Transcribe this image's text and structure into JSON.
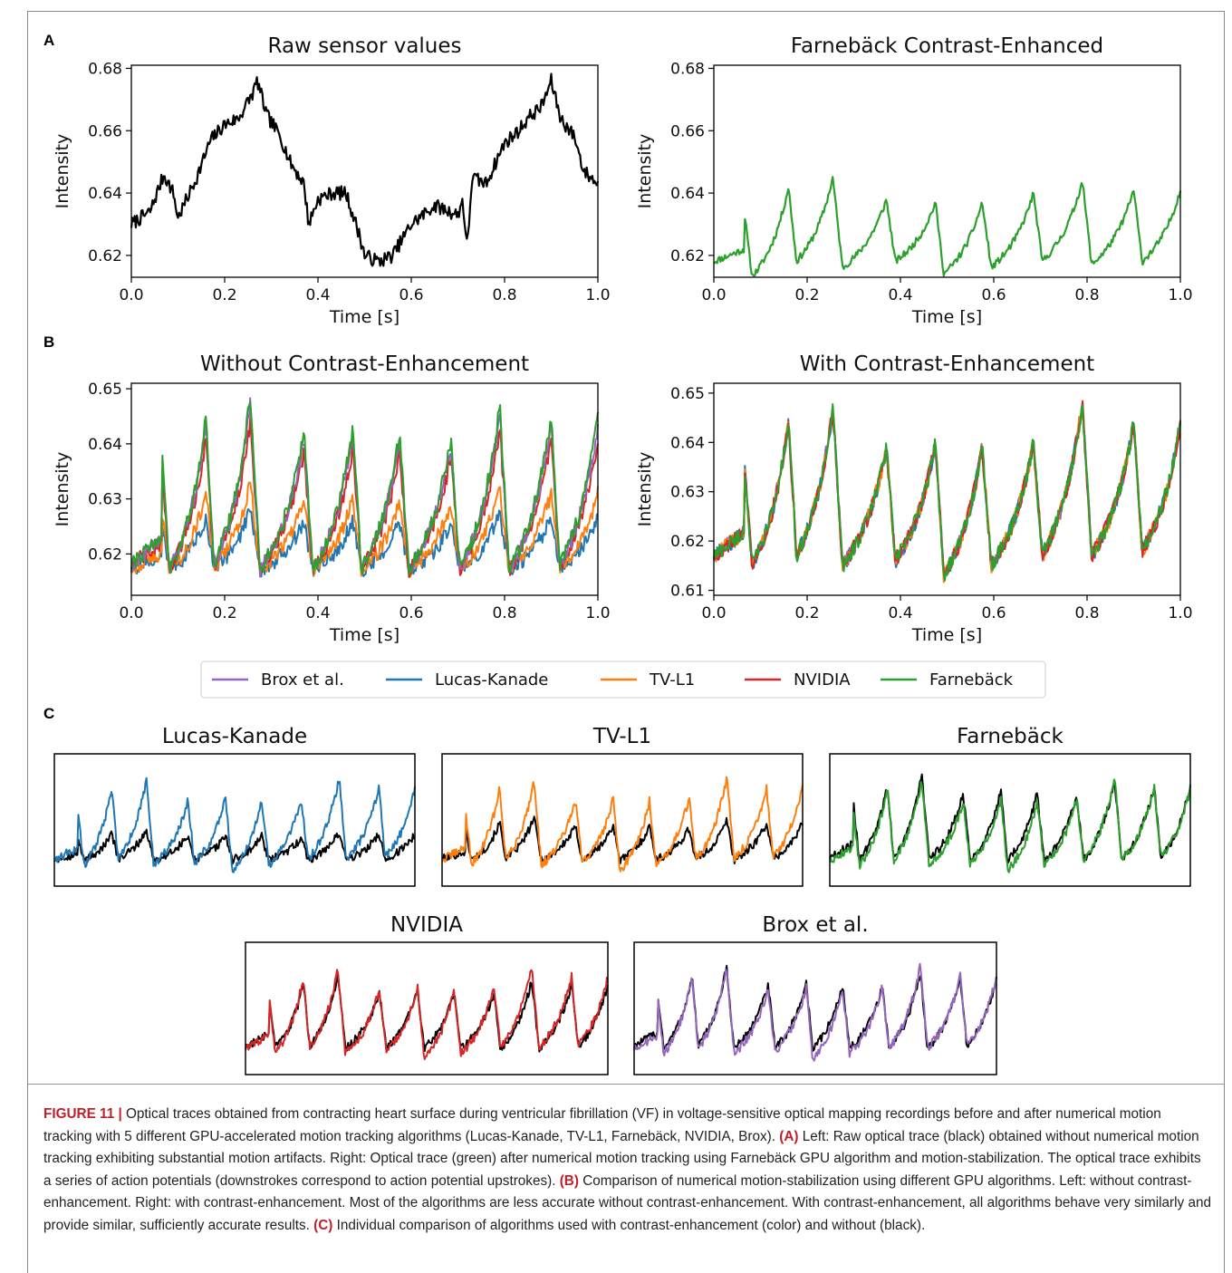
{
  "panel_letters": {
    "a": "A",
    "b": "B",
    "c": "C"
  },
  "colors": {
    "brox": "#9467bd",
    "lucas": "#1f77b4",
    "tvl1": "#ff7f0e",
    "nvidia": "#d62728",
    "farneback": "#2ca02c",
    "raw": "#000000"
  },
  "legend": [
    {
      "key": "brox",
      "label": "Brox et al."
    },
    {
      "key": "lucas",
      "label": "Lucas-Kanade"
    },
    {
      "key": "tvl1",
      "label": "TV-L1"
    },
    {
      "key": "nvidia",
      "label": "NVIDIA"
    },
    {
      "key": "farneback",
      "label": "Farnebäck"
    }
  ],
  "chart_data": [
    {
      "id": "a-left",
      "type": "line",
      "title": "Raw sensor values",
      "xlabel": "Time [s]",
      "ylabel": "Intensity",
      "xlim": [
        0,
        1
      ],
      "ylim": [
        0.613,
        0.681
      ],
      "xticks": [
        "0.0",
        "0.2",
        "0.4",
        "0.6",
        "0.8",
        "1.0"
      ],
      "yticks": [
        "0.62",
        "0.64",
        "0.66",
        "0.68"
      ],
      "series": [
        {
          "color": "raw",
          "x": [
            0.0,
            0.04,
            0.07,
            0.09,
            0.1,
            0.14,
            0.17,
            0.2,
            0.23,
            0.26,
            0.27,
            0.29,
            0.32,
            0.34,
            0.37,
            0.38,
            0.4,
            0.43,
            0.46,
            0.49,
            0.5,
            0.53,
            0.56,
            0.6,
            0.65,
            0.7,
            0.71,
            0.72,
            0.73,
            0.76,
            0.8,
            0.83,
            0.85,
            0.88,
            0.9,
            0.92,
            0.95,
            0.97,
            1.0
          ],
          "values": [
            0.63,
            0.634,
            0.646,
            0.64,
            0.632,
            0.645,
            0.657,
            0.662,
            0.664,
            0.672,
            0.676,
            0.665,
            0.658,
            0.65,
            0.643,
            0.63,
            0.638,
            0.64,
            0.64,
            0.626,
            0.62,
            0.618,
            0.62,
            0.63,
            0.636,
            0.633,
            0.638,
            0.622,
            0.645,
            0.643,
            0.656,
            0.66,
            0.664,
            0.668,
            0.676,
            0.664,
            0.658,
            0.647,
            0.643
          ]
        }
      ]
    },
    {
      "id": "a-right",
      "type": "line",
      "title": "Farnebäck Contrast-Enhanced",
      "xlabel": "Time [s]",
      "ylabel": "Intensity",
      "xlim": [
        0,
        1
      ],
      "ylim": [
        0.613,
        0.681
      ],
      "xticks": [
        "0.0",
        "0.2",
        "0.4",
        "0.6",
        "0.8",
        "1.0"
      ],
      "yticks": [
        "0.62",
        "0.64",
        "0.66",
        "0.68"
      ],
      "beats": [
        0.065,
        0.16,
        0.255,
        0.37,
        0.475,
        0.575,
        0.685,
        0.79,
        0.9
      ],
      "peaks": [
        0.634,
        0.642,
        0.645,
        0.638,
        0.637,
        0.637,
        0.64,
        0.644,
        0.641
      ],
      "troughs": [
        0.618,
        0.613,
        0.618,
        0.616,
        0.618,
        0.614,
        0.616,
        0.618,
        0.617,
        0.618
      ],
      "series": [
        {
          "color": "farneback"
        }
      ]
    },
    {
      "id": "b-left",
      "type": "line",
      "title": "Without Contrast-Enhancement",
      "xlabel": "Time [s]",
      "ylabel": "Intensity",
      "xlim": [
        0,
        1
      ],
      "ylim": [
        0.6125,
        0.651
      ],
      "xticks": [
        "0.0",
        "0.2",
        "0.4",
        "0.6",
        "0.8",
        "1.0"
      ],
      "yticks": [
        "0.62",
        "0.63",
        "0.64",
        "0.65"
      ],
      "beats": [
        0.065,
        0.16,
        0.255,
        0.37,
        0.475,
        0.575,
        0.685,
        0.79,
        0.9
      ],
      "series": [
        {
          "color": "lucas",
          "amp": 0.35,
          "base": 0.619
        },
        {
          "color": "tvl1",
          "amp": 0.5,
          "base": 0.619
        },
        {
          "color": "nvidia",
          "amp": 0.85,
          "base": 0.618
        },
        {
          "color": "brox",
          "amp": 0.95,
          "base": 0.619
        },
        {
          "color": "farneback",
          "amp": 1.0,
          "base": 0.619
        }
      ],
      "peaks": [
        0.639,
        0.645,
        0.649,
        0.642,
        0.643,
        0.642,
        0.641,
        0.647,
        0.645
      ]
    },
    {
      "id": "b-right",
      "type": "line",
      "title": "With Contrast-Enhancement",
      "xlabel": "Time [s]",
      "ylabel": "Intensity",
      "xlim": [
        0,
        1
      ],
      "ylim": [
        0.609,
        0.652
      ],
      "xticks": [
        "0.0",
        "0.2",
        "0.4",
        "0.6",
        "0.8",
        "1.0"
      ],
      "yticks": [
        "0.61",
        "0.62",
        "0.63",
        "0.64",
        "0.65"
      ],
      "beats": [
        0.065,
        0.16,
        0.255,
        0.37,
        0.475,
        0.575,
        0.685,
        0.79,
        0.9
      ],
      "series": [
        {
          "color": "brox"
        },
        {
          "color": "lucas"
        },
        {
          "color": "tvl1"
        },
        {
          "color": "nvidia"
        },
        {
          "color": "farneback"
        }
      ],
      "peaks": [
        0.636,
        0.644,
        0.647,
        0.639,
        0.64,
        0.639,
        0.64,
        0.648,
        0.644
      ]
    }
  ],
  "small_panels": [
    {
      "title": "Lucas-Kanade",
      "color": "lucas"
    },
    {
      "title": "TV-L1",
      "color": "tvl1"
    },
    {
      "title": "Farnebäck",
      "color": "farneback"
    },
    {
      "title": "NVIDIA",
      "color": "nvidia"
    },
    {
      "title": "Brox et al.",
      "color": "brox"
    }
  ],
  "caption": {
    "label": "FIGURE 11",
    "sep": "|",
    "intro": "Optical traces obtained from contracting heart surface during ventricular fibrillation (VF) in voltage-sensitive optical mapping recordings before and after numerical motion tracking with 5 different GPU-accelerated motion tracking algorithms (Lucas-Kanade, TV-L1, Farnebäck, NVIDIA, Brox).",
    "a_tag": "(A)",
    "a_text": "Left: Raw optical trace (black) obtained without numerical motion tracking exhibiting substantial motion artifacts. Right: Optical trace (green) after numerical motion tracking using Farnebäck GPU algorithm and motion-stabilization. The optical trace exhibits a series of action potentials (downstrokes correspond to action potential upstrokes).",
    "b_tag": "(B)",
    "b_text": "Comparison of numerical motion-stabilization using different GPU algorithms. Left: without contrast-enhancement. Right: with contrast-enhancement. Most of the algorithms are less accurate without contrast-enhancement. With contrast-enhancement, all algorithms behave very similarly and provide similar, sufficiently accurate results.",
    "c_tag": "(C)",
    "c_text": "Individual comparison of algorithms used with contrast-enhancement (color) and without (black)."
  }
}
